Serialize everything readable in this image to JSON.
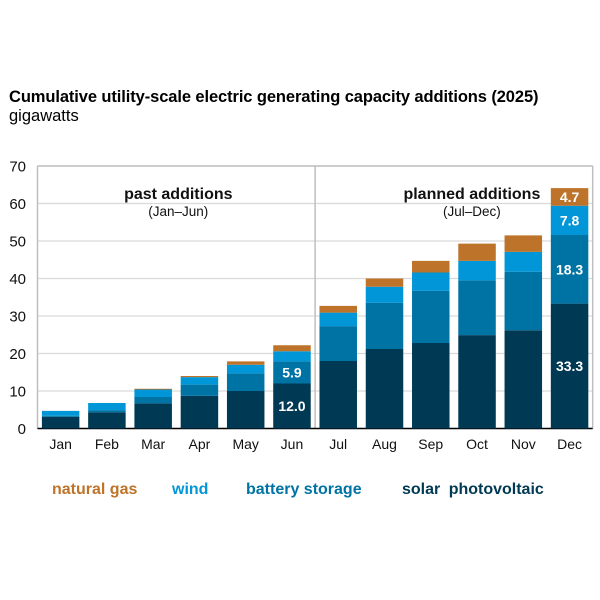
{
  "header": {
    "title": "Cumulative utility-scale electric generating capacity additions (2025)",
    "subtitle": "gigawatts"
  },
  "chart_data": {
    "type": "bar",
    "stacked": true,
    "title": "Cumulative utility-scale electric generating capacity additions (2025)",
    "ylabel": "gigawatts",
    "xlabel": "",
    "ylim": [
      0,
      70
    ],
    "yticks": [
      0,
      10,
      20,
      30,
      40,
      50,
      60,
      70
    ],
    "grid": true,
    "categories": [
      "Jan",
      "Feb",
      "Mar",
      "Apr",
      "May",
      "Jun",
      "Jul",
      "Aug",
      "Sep",
      "Oct",
      "Nov",
      "Dec"
    ],
    "series": [
      {
        "name": "solar photovoltaic",
        "color": "#003953",
        "values": [
          3.1,
          4.3,
          6.7,
          8.7,
          10.0,
          12.0,
          18.0,
          21.2,
          22.8,
          24.9,
          26.2,
          33.3
        ]
      },
      {
        "name": "battery storage",
        "color": "#0073A5",
        "values": [
          0.3,
          0.6,
          1.7,
          3.0,
          4.7,
          5.9,
          9.3,
          12.3,
          13.9,
          14.6,
          15.6,
          18.3
        ]
      },
      {
        "name": "wind",
        "color": "#0096D7",
        "values": [
          1.3,
          1.9,
          2.0,
          2.0,
          2.3,
          2.7,
          3.6,
          4.3,
          4.9,
          5.2,
          5.3,
          7.8
        ]
      },
      {
        "name": "natural gas",
        "color": "#BD732A",
        "values": [
          0.0,
          0.0,
          0.2,
          0.3,
          0.9,
          1.6,
          1.8,
          2.2,
          3.1,
          4.6,
          4.4,
          4.7
        ]
      }
    ],
    "data_labels": [
      {
        "category": "Jun",
        "series": "solar photovoltaic",
        "text": "12.0"
      },
      {
        "category": "Jun",
        "series": "battery storage",
        "text": "5.9"
      },
      {
        "category": "Dec",
        "series": "solar photovoltaic",
        "text": "33.3"
      },
      {
        "category": "Dec",
        "series": "battery storage",
        "text": "18.3"
      },
      {
        "category": "Dec",
        "series": "wind",
        "text": "7.8"
      },
      {
        "category": "Dec",
        "series": "natural gas",
        "text": "4.7"
      }
    ],
    "annotations": [
      {
        "text": "past additions",
        "subtext": "(Jan–Jun)",
        "region": "Jan–Jun"
      },
      {
        "text": "planned additions",
        "subtext": "(Jul–Dec)",
        "region": "Jul–Dec"
      }
    ],
    "divider_between": [
      "Jun",
      "Jul"
    ],
    "legend": {
      "placement": "bottom",
      "items": [
        {
          "label": "natural gas",
          "color": "#BD732A"
        },
        {
          "label": "wind",
          "color": "#0096D7"
        },
        {
          "label": "battery storage",
          "color": "#0073A5"
        },
        {
          "label": "solar photovoltaic",
          "color": "#003953"
        }
      ]
    }
  }
}
